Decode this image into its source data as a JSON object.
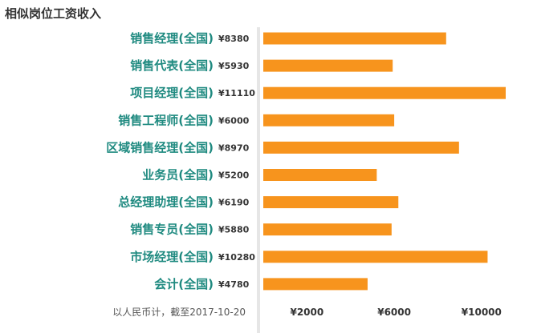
{
  "chart_data": {
    "type": "bar",
    "orientation": "horizontal",
    "title": "相似岗位工资收入",
    "categories": [
      "销售经理(全国)",
      "销售代表(全国)",
      "项目经理(全国)",
      "销售工程师(全国)",
      "区域销售经理(全国)",
      "业务员(全国)",
      "总经理助理(全国)",
      "销售专员(全国)",
      "市场经理(全国)",
      "会计(全国)"
    ],
    "values": [
      8380,
      5930,
      11110,
      6000,
      8970,
      5200,
      6190,
      5880,
      10280,
      4780
    ],
    "value_labels": [
      "¥8380",
      "¥5930",
      "¥11110",
      "¥6000",
      "¥8970",
      "¥5200",
      "¥6190",
      "¥5880",
      "¥10280",
      "¥4780"
    ],
    "xticks": [
      2000,
      6000,
      10000
    ],
    "xtick_labels": [
      "¥2000",
      "¥6000",
      "¥10000"
    ],
    "xlim": [
      0,
      11200
    ],
    "footnote": "以人民币计，截至2017-10-20",
    "grid": false,
    "colors": {
      "bar": "#f7941d",
      "category_text": "#1f8a80",
      "divider": "#e6e6e6"
    }
  }
}
